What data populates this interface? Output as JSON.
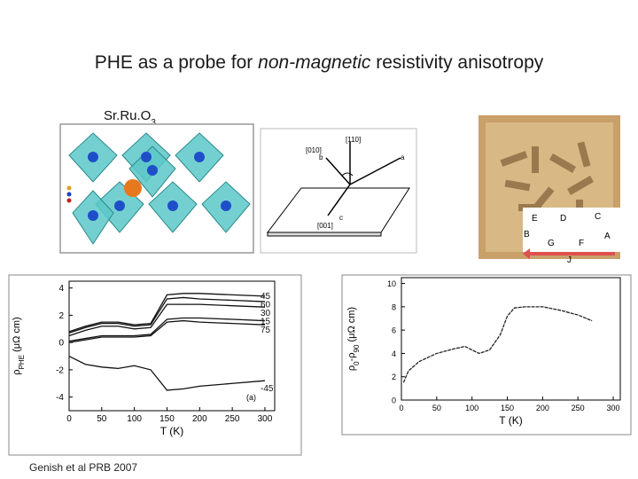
{
  "title_parts": [
    "PHE as a probe for ",
    "non-magnetic",
    " resistivity anisotropy"
  ],
  "formula": {
    "main": "Sr.Ru.O",
    "subscript": "3"
  },
  "orientation_diagram": {
    "labels": [
      "[110]",
      "[010]",
      "b",
      "a",
      "c",
      "[001]"
    ]
  },
  "sample_photo": {
    "labels": [
      "E",
      "D",
      "C",
      "B",
      "G",
      "F",
      "A",
      "J"
    ]
  },
  "citation": "Genish et al PRB 2007",
  "chart_data": [
    {
      "type": "line",
      "x_label": "T (K)",
      "y_label_parts": [
        {
          "text": "ρ"
        },
        {
          "text": "PHE",
          "sub": true
        },
        {
          "text": " (μΩ cm)"
        }
      ],
      "annotation": "(a)",
      "x": [
        0,
        25,
        50,
        75,
        100,
        125,
        150,
        175,
        200,
        250,
        300
      ],
      "series": [
        {
          "name": "45",
          "color": "#111111",
          "values": [
            0.8,
            1.2,
            1.5,
            1.5,
            1.3,
            1.4,
            3.5,
            3.6,
            3.6,
            3.5,
            3.4
          ]
        },
        {
          "name": "60",
          "color": "#111111",
          "values": [
            0.7,
            1.1,
            1.4,
            1.4,
            1.2,
            1.3,
            3.2,
            3.3,
            3.2,
            3.1,
            3.0
          ]
        },
        {
          "name": "30",
          "color": "#111111",
          "values": [
            0.5,
            0.9,
            1.2,
            1.2,
            1.0,
            1.1,
            2.8,
            2.8,
            2.8,
            2.7,
            2.6
          ]
        },
        {
          "name": "15",
          "color": "#111111",
          "values": [
            0.1,
            0.3,
            0.5,
            0.5,
            0.5,
            0.6,
            1.7,
            1.8,
            1.8,
            1.7,
            1.6
          ]
        },
        {
          "name": "75",
          "color": "#111111",
          "values": [
            0.0,
            0.2,
            0.4,
            0.4,
            0.4,
            0.5,
            1.5,
            1.6,
            1.5,
            1.4,
            1.3
          ]
        },
        {
          "name": "-45",
          "color": "#111111",
          "values": [
            -1.0,
            -1.6,
            -1.8,
            -1.9,
            -1.7,
            -2.0,
            -3.5,
            -3.4,
            -3.2,
            -3.0,
            -2.8
          ]
        }
      ],
      "xlim": [
        0,
        315
      ],
      "ylim": [
        -5,
        4.5
      ],
      "xticks": [
        0,
        50,
        100,
        150,
        200,
        250,
        300
      ],
      "yticks": [
        -4,
        -2,
        0,
        2,
        4
      ]
    },
    {
      "type": "line",
      "x_label": "T (K)",
      "y_label_parts": [
        {
          "text": "ρ"
        },
        {
          "text": "0",
          "sub": true
        },
        {
          "text": "-ρ"
        },
        {
          "text": "90",
          "sub": true
        },
        {
          "text": " (μΩ cm)"
        }
      ],
      "x": [
        3,
        10,
        25,
        50,
        75,
        90,
        100,
        110,
        125,
        140,
        150,
        160,
        175,
        200,
        225,
        250,
        270
      ],
      "series": [
        {
          "color": "#222222",
          "values": [
            1.5,
            2.5,
            3.3,
            4.0,
            4.4,
            4.6,
            4.3,
            4.0,
            4.3,
            5.6,
            7.2,
            7.9,
            8.0,
            8.0,
            7.7,
            7.3,
            6.8
          ]
        }
      ],
      "xlim": [
        0,
        310
      ],
      "ylim": [
        0,
        10.5
      ],
      "xticks": [
        0,
        50,
        100,
        150,
        200,
        250,
        300
      ],
      "yticks": [
        0,
        2,
        4,
        6,
        8,
        10
      ]
    }
  ]
}
